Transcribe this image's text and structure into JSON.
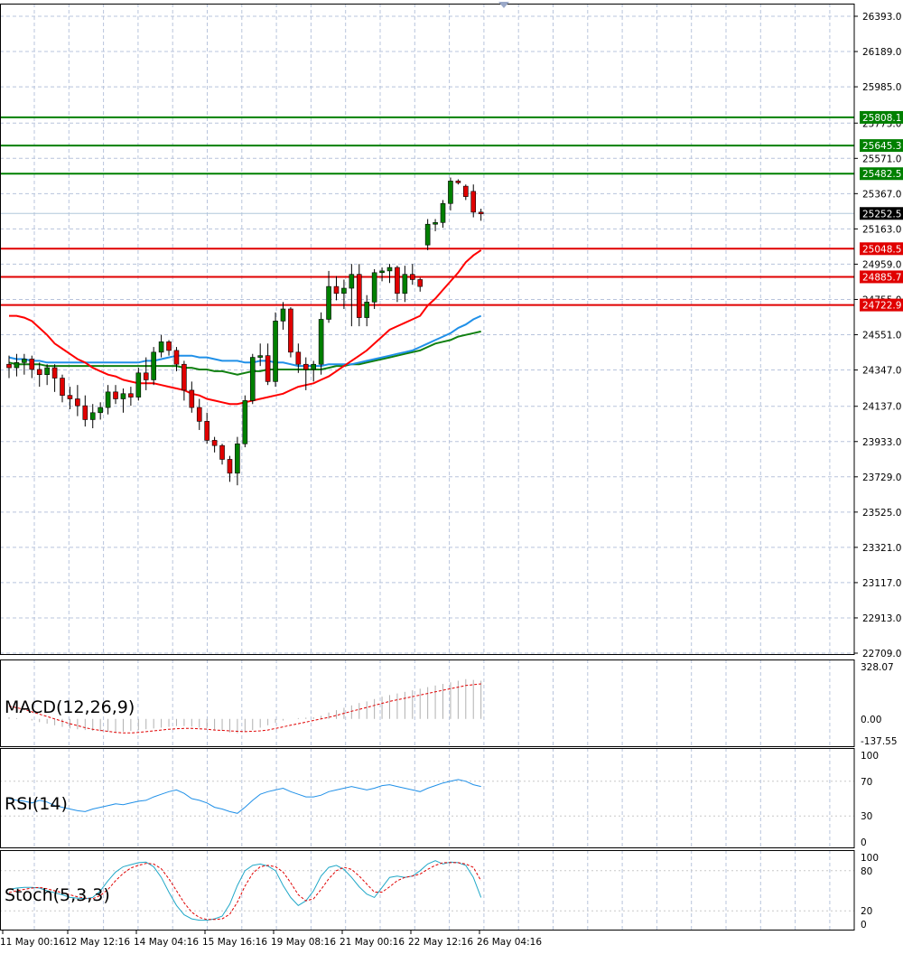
{
  "chart_data": {
    "type": "candlestick",
    "main": {
      "price_ticks": [
        "26393.0",
        "26189.0",
        "25985.0",
        "25775.0",
        "25571.0",
        "25367.0",
        "25163.0",
        "24959.0",
        "24755.0",
        "24551.0",
        "24347.0",
        "24137.0",
        "23933.0",
        "23729.0",
        "23525.0",
        "23321.0",
        "23117.0",
        "22913.0",
        "22709.0"
      ],
      "ylim": [
        22709.0,
        26393.0
      ],
      "resistance_levels": [
        "25808.1",
        "25645.3",
        "25482.5"
      ],
      "support_levels": [
        "25048.5",
        "24885.7",
        "24722.9"
      ],
      "current_price": "25252.5",
      "colors": {
        "resistance": "#008000",
        "support": "#e00000",
        "bull": "#008000",
        "bear": "#e00000",
        "ma_fast": "#ff0000",
        "ma_mid": "#2090e8",
        "ma_slow": "#108010"
      },
      "candles": [
        [
          24380,
          24430,
          24300,
          24360
        ],
        [
          24360,
          24440,
          24310,
          24390
        ],
        [
          24390,
          24440,
          24320,
          24410
        ],
        [
          24410,
          24430,
          24300,
          24350
        ],
        [
          24350,
          24390,
          24250,
          24320
        ],
        [
          24320,
          24380,
          24260,
          24360
        ],
        [
          24360,
          24380,
          24220,
          24300
        ],
        [
          24300,
          24320,
          24160,
          24200
        ],
        [
          24200,
          24250,
          24120,
          24180
        ],
        [
          24180,
          24260,
          24080,
          24140
        ],
        [
          24140,
          24200,
          24020,
          24060
        ],
        [
          24060,
          24150,
          24010,
          24100
        ],
        [
          24100,
          24160,
          24060,
          24130
        ],
        [
          24130,
          24260,
          24090,
          24220
        ],
        [
          24220,
          24260,
          24150,
          24180
        ],
        [
          24180,
          24240,
          24100,
          24210
        ],
        [
          24210,
          24250,
          24140,
          24190
        ],
        [
          24190,
          24360,
          24170,
          24330
        ],
        [
          24330,
          24420,
          24230,
          24290
        ],
        [
          24290,
          24480,
          24260,
          24450
        ],
        [
          24450,
          24550,
          24420,
          24510
        ],
        [
          24510,
          24520,
          24430,
          24460
        ],
        [
          24460,
          24480,
          24340,
          24380
        ],
        [
          24380,
          24400,
          24170,
          24230
        ],
        [
          24230,
          24280,
          24100,
          24130
        ],
        [
          24130,
          24180,
          24000,
          24050
        ],
        [
          24050,
          24100,
          23920,
          23940
        ],
        [
          23940,
          23960,
          23870,
          23910
        ],
        [
          23910,
          23920,
          23800,
          23830
        ],
        [
          23830,
          23850,
          23700,
          23750
        ],
        [
          23750,
          23960,
          23680,
          23920
        ],
        [
          23920,
          24200,
          23900,
          24170
        ],
        [
          24170,
          24440,
          24150,
          24420
        ],
        [
          24420,
          24500,
          24370,
          24430
        ],
        [
          24430,
          24500,
          24260,
          24280
        ],
        [
          24280,
          24680,
          24250,
          24630
        ],
        [
          24630,
          24740,
          24580,
          24700
        ],
        [
          24700,
          24710,
          24420,
          24450
        ],
        [
          24450,
          24500,
          24330,
          24380
        ],
        [
          24380,
          24420,
          24230,
          24350
        ],
        [
          24350,
          24400,
          24280,
          24380
        ],
        [
          24380,
          24680,
          24320,
          24640
        ],
        [
          24640,
          24920,
          24620,
          24830
        ],
        [
          24830,
          24890,
          24750,
          24790
        ],
        [
          24790,
          24870,
          24700,
          24820
        ],
        [
          24820,
          24960,
          24600,
          24900
        ],
        [
          24900,
          24960,
          24600,
          24650
        ],
        [
          24650,
          24780,
          24600,
          24740
        ],
        [
          24740,
          24930,
          24700,
          24910
        ],
        [
          24910,
          24940,
          24860,
          24920
        ],
        [
          24920,
          24960,
          24850,
          24940
        ],
        [
          24940,
          24950,
          24740,
          24790
        ],
        [
          24790,
          24950,
          24740,
          24900
        ],
        [
          24900,
          24960,
          24840,
          24870
        ],
        [
          24870,
          24880,
          24800,
          24830
        ],
        [
          25070,
          25220,
          25040,
          25190
        ],
        [
          25190,
          25220,
          25150,
          25200
        ],
        [
          25200,
          25330,
          25170,
          25310
        ],
        [
          25310,
          25460,
          25270,
          25440
        ],
        [
          25440,
          25450,
          25420,
          25430
        ],
        [
          25410,
          25420,
          25330,
          25350
        ],
        [
          25380,
          25420,
          25230,
          25260
        ],
        [
          25260,
          25280,
          25210,
          25250
        ]
      ],
      "ma_fast": [
        24660,
        24660,
        24650,
        24630,
        24590,
        24550,
        24500,
        24470,
        24440,
        24410,
        24390,
        24360,
        24340,
        24320,
        24310,
        24290,
        24280,
        24270,
        24270,
        24270,
        24260,
        24250,
        24240,
        24230,
        24210,
        24200,
        24180,
        24170,
        24160,
        24150,
        24150,
        24160,
        24170,
        24180,
        24190,
        24200,
        24210,
        24230,
        24250,
        24260,
        24270,
        24290,
        24310,
        24340,
        24370,
        24400,
        24430,
        24460,
        24500,
        24540,
        24580,
        24600,
        24620,
        24640,
        24660,
        24720,
        24760,
        24810,
        24860,
        24910,
        24970,
        25010,
        25040
      ],
      "ma_mid": [
        24420,
        24410,
        24410,
        24400,
        24400,
        24390,
        24390,
        24390,
        24390,
        24390,
        24390,
        24390,
        24390,
        24390,
        24390,
        24390,
        24390,
        24390,
        24400,
        24400,
        24410,
        24420,
        24430,
        24430,
        24430,
        24420,
        24420,
        24410,
        24400,
        24400,
        24400,
        24390,
        24390,
        24400,
        24400,
        24390,
        24390,
        24380,
        24370,
        24370,
        24370,
        24370,
        24380,
        24380,
        24380,
        24380,
        24390,
        24400,
        24410,
        24420,
        24430,
        24440,
        24450,
        24460,
        24480,
        24500,
        24520,
        24540,
        24560,
        24590,
        24610,
        24640,
        24660
      ],
      "ma_slow": [
        24390,
        24380,
        24380,
        24380,
        24380,
        24370,
        24370,
        24370,
        24370,
        24370,
        24370,
        24370,
        24370,
        24370,
        24370,
        24370,
        24370,
        24370,
        24370,
        24370,
        24370,
        24370,
        24370,
        24360,
        24360,
        24350,
        24350,
        24340,
        24340,
        24330,
        24320,
        24330,
        24340,
        24340,
        24350,
        24350,
        24350,
        24350,
        24350,
        24350,
        24350,
        24350,
        24360,
        24370,
        24370,
        24380,
        24380,
        24390,
        24400,
        24410,
        24420,
        24430,
        24440,
        24450,
        24460,
        24480,
        24500,
        24510,
        24520,
        24540,
        24550,
        24560,
        24570
      ]
    },
    "macd": {
      "label": "MACD(12,26,9)",
      "ticks": [
        "328.07",
        "0.00",
        "-137.55"
      ],
      "ylim": [
        -137.55,
        328.07
      ],
      "histogram": [
        10,
        5,
        0,
        -10,
        -20,
        -30,
        -40,
        -50,
        -60,
        -65,
        -70,
        -75,
        -78,
        -80,
        -82,
        -80,
        -75,
        -70,
        -65,
        -60,
        -55,
        -50,
        -45,
        -45,
        -48,
        -55,
        -60,
        -68,
        -75,
        -85,
        -90,
        -80,
        -70,
        -55,
        -40,
        -25,
        -10,
        0,
        5,
        8,
        10,
        20,
        40,
        55,
        70,
        85,
        100,
        110,
        125,
        140,
        150,
        160,
        170,
        180,
        190,
        200,
        210,
        220,
        230,
        240,
        250,
        245,
        240
      ],
      "signal": [
        80,
        70,
        60,
        45,
        30,
        15,
        0,
        -15,
        -30,
        -42,
        -55,
        -65,
        -72,
        -78,
        -85,
        -88,
        -88,
        -85,
        -80,
        -75,
        -70,
        -65,
        -62,
        -60,
        -60,
        -62,
        -65,
        -70,
        -72,
        -75,
        -78,
        -80,
        -78,
        -75,
        -70,
        -60,
        -50,
        -40,
        -30,
        -20,
        -10,
        0,
        10,
        22,
        35,
        48,
        60,
        72,
        85,
        98,
        110,
        120,
        130,
        140,
        150,
        160,
        170,
        180,
        190,
        200,
        210,
        215,
        220
      ]
    },
    "rsi": {
      "label": "RSI(14)",
      "ticks": [
        "100",
        "70",
        "30",
        "0"
      ],
      "ylim": [
        0,
        100
      ],
      "values": [
        50,
        48,
        47,
        45,
        48,
        46,
        42,
        40,
        38,
        36,
        35,
        38,
        40,
        42,
        44,
        43,
        45,
        47,
        48,
        52,
        55,
        58,
        60,
        56,
        50,
        48,
        45,
        40,
        38,
        35,
        33,
        40,
        48,
        55,
        58,
        60,
        62,
        58,
        55,
        52,
        52,
        54,
        58,
        60,
        62,
        64,
        62,
        60,
        62,
        65,
        66,
        64,
        62,
        60,
        58,
        62,
        65,
        68,
        70,
        72,
        70,
        66,
        64
      ]
    },
    "stoch": {
      "label": "Stoch(5,3,3)",
      "ticks": [
        "100",
        "80",
        "20",
        "0"
      ],
      "ylim": [
        0,
        100
      ],
      "main": [
        52,
        54,
        55,
        55,
        54,
        50,
        47,
        44,
        40,
        39,
        38,
        40,
        50,
        65,
        78,
        86,
        89,
        92,
        93,
        86,
        70,
        48,
        28,
        14,
        8,
        6,
        6,
        8,
        12,
        30,
        58,
        80,
        88,
        90,
        87,
        80,
        58,
        40,
        28,
        35,
        50,
        72,
        85,
        88,
        82,
        70,
        56,
        45,
        40,
        55,
        70,
        72,
        70,
        72,
        80,
        90,
        95,
        90,
        93,
        92,
        88,
        70,
        40
      ],
      "signal": [
        47,
        50,
        52,
        54,
        55,
        53,
        50,
        47,
        44,
        41,
        39,
        38,
        43,
        52,
        65,
        76,
        84,
        88,
        91,
        90,
        83,
        68,
        50,
        32,
        18,
        10,
        7,
        7,
        8,
        15,
        33,
        57,
        76,
        86,
        88,
        86,
        78,
        62,
        44,
        35,
        38,
        52,
        68,
        80,
        85,
        82,
        72,
        60,
        48,
        48,
        56,
        65,
        70,
        72,
        75,
        82,
        88,
        92,
        92,
        92,
        90,
        85,
        65
      ]
    },
    "x_labels": [
      "11 May 00:16",
      "12 May 12:16",
      "14 May 04:16",
      "15 May 16:16",
      "19 May 08:16",
      "21 May 00:16",
      "22 May 12:16",
      "26 May 04:16"
    ]
  }
}
